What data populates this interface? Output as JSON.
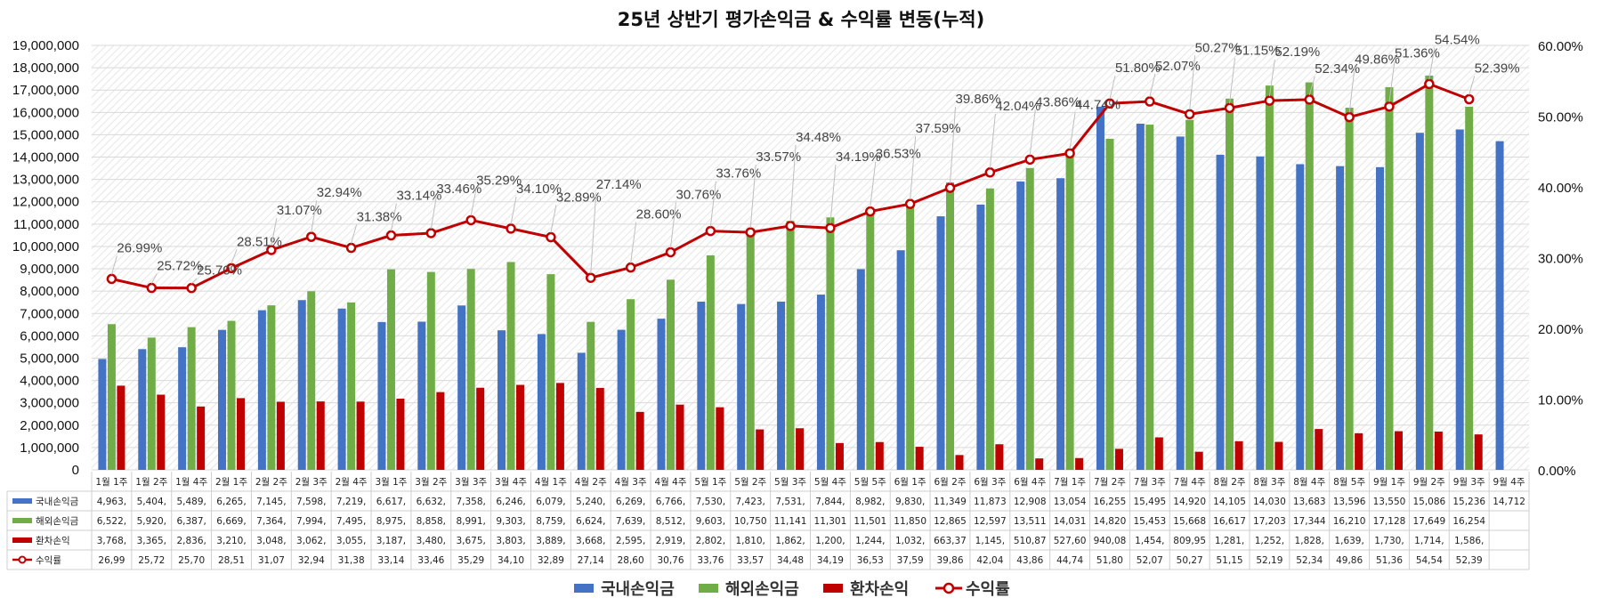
{
  "chart_data": {
    "type": "bar",
    "title": "25년 상반기 평가손익금 & 수익률 변동(누적)",
    "categories": [
      "1월 1주",
      "1월 2주",
      "1월 4주",
      "2월 1주",
      "2월 2주",
      "2월 3주",
      "2월 4주",
      "3월 1주",
      "3월 2주",
      "3월 3주",
      "3월 4주",
      "4월 1주",
      "4월 2주",
      "4월 3주",
      "4월 4주",
      "5월 1주",
      "5월 2주",
      "5월 3주",
      "5월 4주",
      "5월 5주",
      "6월 1주",
      "6월 2주",
      "6월 3주",
      "6월 4주",
      "7월 1주",
      "7월 2주",
      "7월 3주",
      "7월 4주",
      "8월 2주",
      "8월 3주",
      "8월 4주",
      "8월 5주",
      "9월 1주",
      "9월 2주",
      "9월 3주",
      "9월 4주"
    ],
    "y_left": {
      "min": 0,
      "max": 19000000,
      "step": 1000000
    },
    "y_right": {
      "min": 0,
      "max": 60,
      "step": 10,
      "unit": "%"
    },
    "grid": true,
    "legend_position": "bottom",
    "series": [
      {
        "name": "국내손익금",
        "type": "bar",
        "color": "#4472C4",
        "axis": "left",
        "values": [
          4963000,
          5404000,
          5489000,
          6265000,
          7145000,
          7598000,
          7219000,
          6617000,
          6632000,
          7358000,
          6246000,
          6079000,
          5240000,
          6269000,
          6766000,
          7530000,
          7423000,
          7531000,
          7844000,
          8982000,
          9830000,
          11349000,
          11873000,
          12908000,
          13054000,
          16255000,
          15495000,
          14920000,
          14105000,
          14030000,
          13683000,
          13596000,
          13550000,
          15086000,
          15236000,
          14712000
        ]
      },
      {
        "name": "해외손익금",
        "type": "bar",
        "color": "#70AD47",
        "axis": "left",
        "values": [
          6522000,
          5920000,
          6387000,
          6669000,
          7364000,
          7994000,
          7495000,
          8975000,
          8858000,
          8991000,
          9303000,
          8759000,
          6624000,
          7639000,
          8512000,
          9603000,
          10750000,
          11141000,
          11301000,
          11501000,
          11850000,
          12865000,
          12597000,
          13511000,
          14031000,
          14820000,
          15453000,
          15668000,
          16617000,
          17203000,
          17344000,
          16210000,
          17128000,
          17649000,
          16254000,
          null
        ]
      },
      {
        "name": "환차손익",
        "type": "bar",
        "color": "#C00000",
        "axis": "left",
        "values": [
          3768000,
          3365000,
          2836000,
          3210000,
          3048000,
          3062000,
          3055000,
          3187000,
          3480000,
          3675000,
          3803000,
          3889000,
          3668000,
          2595000,
          2919000,
          2802000,
          1810000,
          1862000,
          1200000,
          1244000,
          1032000,
          663370,
          1145000,
          510870,
          527600,
          940080,
          1454000,
          809950,
          1281000,
          1252000,
          1828000,
          1639000,
          1730000,
          1714000,
          1586000,
          null
        ]
      },
      {
        "name": "수익률",
        "type": "line",
        "color": "#C00000",
        "axis": "right",
        "values": [
          26.99,
          25.72,
          25.7,
          28.51,
          31.07,
          32.94,
          31.38,
          33.14,
          33.46,
          35.29,
          34.1,
          32.89,
          27.14,
          28.6,
          30.76,
          33.76,
          33.57,
          34.48,
          34.19,
          36.53,
          37.59,
          39.86,
          42.04,
          43.86,
          44.74,
          51.8,
          52.07,
          50.27,
          51.15,
          52.19,
          52.34,
          49.86,
          51.36,
          54.54,
          52.39,
          null
        ],
        "labels": [
          "26.99%",
          "25.72%",
          "25.70%",
          "28.51%",
          "31.07%",
          "32.94%",
          "31.38%",
          "33.14%",
          "33.46%",
          "35.29%",
          "34.10%",
          "32.89%",
          "27.14%",
          "28.60%",
          "30.76%",
          "33.76%",
          "33.57%",
          "34.48%",
          "34.19%",
          "36.53%",
          "37.59%",
          "39.86%",
          "42.04%",
          "43.86%",
          "44.74%",
          "51.80%",
          "52.07%",
          "50.27%",
          "51.15%",
          "52.19%",
          "52.34%",
          "49.86%",
          "51.36%",
          "54.54%",
          "52.39%",
          ""
        ]
      }
    ],
    "table": {
      "rows": [
        {
          "label": "국내손익금",
          "cells": [
            "4,963,",
            "5,404,",
            "5,489,",
            "6,265,",
            "7,145,",
            "7,598,",
            "7,219,",
            "6,617,",
            "6,632,",
            "7,358,",
            "6,246,",
            "6,079,",
            "5,240,",
            "6,269,",
            "6,766,",
            "7,530,",
            "7,423,",
            "7,531,",
            "7,844,",
            "8,982,",
            "9,830,",
            "11,349",
            "11,873",
            "12,908",
            "13,054",
            "16,255",
            "15,495",
            "14,920",
            "14,105",
            "14,030",
            "13,683",
            "13,596",
            "13,550",
            "15,086",
            "15,236",
            "14,712"
          ]
        },
        {
          "label": "해외손익금",
          "cells": [
            "6,522,",
            "5,920,",
            "6,387,",
            "6,669,",
            "7,364,",
            "7,994,",
            "7,495,",
            "8,975,",
            "8,858,",
            "8,991,",
            "9,303,",
            "8,759,",
            "6,624,",
            "7,639,",
            "8,512,",
            "9,603,",
            "10,750",
            "11,141",
            "11,301",
            "11,501",
            "11,850",
            "12,865",
            "12,597",
            "13,511",
            "14,031",
            "14,820",
            "15,453",
            "15,668",
            "16,617",
            "17,203",
            "17,344",
            "16,210",
            "17,128",
            "17,649",
            "16,254",
            ""
          ]
        },
        {
          "label": "환차손익",
          "cells": [
            "3,768,",
            "3,365,",
            "2,836,",
            "3,210,",
            "3,048,",
            "3,062,",
            "3,055,",
            "3,187,",
            "3,480,",
            "3,675,",
            "3,803,",
            "3,889,",
            "3,668,",
            "2,595,",
            "2,919,",
            "2,802,",
            "1,810,",
            "1,862,",
            "1,200,",
            "1,244,",
            "1,032,",
            "663,37",
            "1,145,",
            "510,87",
            "527,60",
            "940,08",
            "1,454,",
            "809,95",
            "1,281,",
            "1,252,",
            "1,828,",
            "1,639,",
            "1,730,",
            "1,714,",
            "1,586,",
            ""
          ]
        },
        {
          "label": "수익률",
          "cells": [
            "26,99",
            "25,72",
            "25,70",
            "28,51",
            "31,07",
            "32,94",
            "31,38",
            "33,14",
            "33,46",
            "35,29",
            "34,10",
            "32,89",
            "27,14",
            "28,60",
            "30,76",
            "33,76",
            "33,57",
            "34,48",
            "34,19",
            "36,53",
            "37,59",
            "39,86",
            "42,04",
            "43,86",
            "44,74",
            "51,80",
            "52,07",
            "50,27",
            "51,15",
            "52,19",
            "52,34",
            "49,86",
            "51,36",
            "54,54",
            "52,39",
            ""
          ]
        }
      ]
    }
  }
}
